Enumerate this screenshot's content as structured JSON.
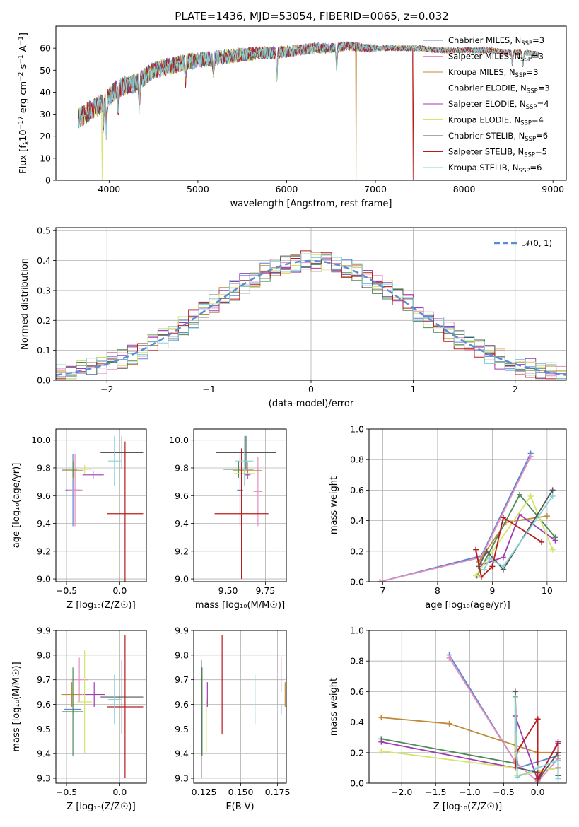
{
  "title": "PLATE=1436, MJD=53054, FIBERID=0065, z=0.032",
  "series_colors": [
    "#5b84d4",
    "#e38fc0",
    "#c08a3a",
    "#4e8a55",
    "#a03bb5",
    "#d7e36a",
    "#555555",
    "#b81c1c",
    "#86d2d8"
  ],
  "series_names": [
    "Chabrier MILES, N",
    "Salpeter MILES, N",
    "Kroupa MILES, N",
    "Chabrier ELODIE, N",
    "Salpeter ELODIE, N",
    "Kroupa ELODIE, N",
    "Chabrier STELIB, N",
    "Salpeter STELIB, N",
    "Kroupa STELIB, N"
  ],
  "series_nssp_sub": "SSP",
  "series_nssp": [
    "=3",
    "=3",
    "=3",
    "=3",
    "=4",
    "=4",
    "=6",
    "=5",
    "=6"
  ],
  "chart_data": [
    {
      "type": "line",
      "id": "spectrum",
      "xlabel": "wavelength [Angstrom, rest frame]",
      "ylabel": "Flux [f",
      "ylabel_parts": [
        "Flux [f",
        "λ",
        "10",
        "−17",
        " erg cm",
        "−2",
        " s",
        "−1",
        " A",
        "−1",
        "]"
      ],
      "xlim": [
        3400,
        9150
      ],
      "ylim": [
        0,
        70
      ],
      "xticks": [
        4000,
        5000,
        6000,
        7000,
        8000,
        9000
      ],
      "yticks": [
        0,
        10,
        20,
        30,
        40,
        50,
        60
      ],
      "grid": false,
      "legend_position": "upper-right",
      "continuum": [
        [
          3650,
          28
        ],
        [
          3800,
          32
        ],
        [
          3950,
          36
        ],
        [
          4100,
          42
        ],
        [
          4300,
          44
        ],
        [
          4500,
          50
        ],
        [
          4700,
          52
        ],
        [
          4900,
          54
        ],
        [
          5100,
          55
        ],
        [
          5300,
          56
        ],
        [
          5500,
          57
        ],
        [
          5700,
          58
        ],
        [
          5900,
          58
        ],
        [
          6100,
          59
        ],
        [
          6300,
          60
        ],
        [
          6500,
          60
        ],
        [
          6700,
          61
        ],
        [
          6900,
          60
        ],
        [
          7100,
          60
        ],
        [
          7300,
          60
        ],
        [
          7500,
          60
        ],
        [
          7700,
          59
        ],
        [
          7900,
          59
        ],
        [
          8100,
          59
        ],
        [
          8300,
          59
        ],
        [
          8500,
          58
        ],
        [
          8700,
          58
        ],
        [
          8850,
          57
        ]
      ],
      "dips": [
        [
          3934,
          12
        ],
        [
          3969,
          14
        ],
        [
          4102,
          10
        ],
        [
          4340,
          12
        ],
        [
          4861,
          8
        ],
        [
          5175,
          6
        ],
        [
          5890,
          12
        ],
        [
          6563,
          10
        ],
        [
          8542,
          6
        ],
        [
          8662,
          6
        ]
      ],
      "drop_outs": [
        {
          "x": 3920,
          "series": 5,
          "to": 0
        },
        {
          "x": 6780,
          "series": 2,
          "to": 0
        },
        {
          "x": 7425,
          "series": 7,
          "to": 0
        }
      ]
    },
    {
      "type": "histogram",
      "id": "residuals",
      "xlabel": "(data-model)/error",
      "ylabel": "Normed distribution",
      "xlim": [
        -2.5,
        2.5
      ],
      "ylim": [
        0,
        0.51
      ],
      "xticks": [
        -2,
        -1,
        0,
        1,
        2
      ],
      "yticks": [
        0.0,
        0.1,
        0.2,
        0.3,
        0.4,
        0.5
      ],
      "grid": true,
      "legend_position": "upper-right",
      "legend_label": "𝒩(0, 1)",
      "bin_width": 0.1,
      "gaussian": {
        "mean": 0,
        "sigma": 1
      }
    },
    {
      "type": "scatter",
      "id": "age-vs-Z",
      "xlabel": "Z [log₁₀(Z/Z☉)]",
      "ylabel": "age  [log₁₀(age/yr)]",
      "xlim": [
        -0.6,
        0.25
      ],
      "ylim": [
        8.98,
        10.08
      ],
      "xticks": [
        -0.5,
        0.0
      ],
      "xticklabels": [
        "−0.5",
        "0.0"
      ],
      "yticks": [
        9.0,
        9.2,
        9.4,
        9.6,
        9.8,
        10.0
      ],
      "yticklabels": [
        "9.0",
        "9.2",
        "9.4",
        "9.6",
        "9.8",
        "10.0"
      ],
      "grid": true,
      "points": [
        {
          "s": 0,
          "x": -0.44,
          "y": 9.64,
          "ex": 0.07,
          "ey": 0.26
        },
        {
          "s": 1,
          "x": -0.42,
          "y": 9.64,
          "ex": 0.07,
          "ey": 0.26
        },
        {
          "s": 2,
          "x": -0.44,
          "y": 9.78,
          "ex": 0.1,
          "ey": 0.06
        },
        {
          "s": 3,
          "x": -0.44,
          "y": 9.79,
          "ex": 0.1,
          "ey": 0.06
        },
        {
          "s": 4,
          "x": -0.25,
          "y": 9.75,
          "ex": 0.1,
          "ey": 0.03
        },
        {
          "s": 5,
          "x": -0.33,
          "y": 9.79,
          "ex": 0.07,
          "ey": 0.03
        },
        {
          "s": 6,
          "x": 0.02,
          "y": 9.91,
          "ex": 0.2,
          "ey": 0.12
        },
        {
          "s": 7,
          "x": 0.05,
          "y": 9.47,
          "ex": 0.17,
          "ey": 0.52
        },
        {
          "s": 8,
          "x": -0.05,
          "y": 9.85,
          "ex": 0.06,
          "ey": 0.18
        }
      ]
    },
    {
      "type": "scatter",
      "id": "age-vs-mass",
      "xlabel": "mass [log₁₀(M/M☉)]",
      "ylabel": "",
      "xlim": [
        9.27,
        9.89
      ],
      "ylim": [
        8.98,
        10.08
      ],
      "xticks": [
        9.5,
        9.75
      ],
      "xticklabels": [
        "9.50",
        "9.75"
      ],
      "yticks": [
        9.0,
        9.2,
        9.4,
        9.6,
        9.8,
        10.0
      ],
      "yticklabels": [
        "9.0",
        "9.2",
        "9.4",
        "9.6",
        "9.8",
        "10.0"
      ],
      "grid": true,
      "points": [
        {
          "s": 0,
          "x": 9.58,
          "y": 9.64,
          "ex": 0.02,
          "ey": 0.26
        },
        {
          "s": 1,
          "x": 9.7,
          "y": 9.63,
          "ex": 0.03,
          "ey": 0.25
        },
        {
          "s": 2,
          "x": 9.63,
          "y": 9.78,
          "ex": 0.1,
          "ey": 0.06
        },
        {
          "s": 3,
          "x": 9.57,
          "y": 9.79,
          "ex": 0.1,
          "ey": 0.06
        },
        {
          "s": 4,
          "x": 9.63,
          "y": 9.75,
          "ex": 0.02,
          "ey": 0.03
        },
        {
          "s": 5,
          "x": 9.61,
          "y": 9.76,
          "ex": 0.07,
          "ey": 0.03
        },
        {
          "s": 6,
          "x": 9.62,
          "y": 9.91,
          "ex": 0.2,
          "ey": 0.12
        },
        {
          "s": 7,
          "x": 9.59,
          "y": 9.47,
          "ex": 0.18,
          "ey": 0.47
        },
        {
          "s": 8,
          "x": 9.61,
          "y": 9.85,
          "ex": 0.06,
          "ey": 0.18
        }
      ]
    },
    {
      "type": "line",
      "id": "sfh-age",
      "xlabel": "age  [log₁₀(age/yr)]",
      "ylabel": "mass weight",
      "xlim": [
        6.75,
        10.35
      ],
      "ylim": [
        0,
        1.0
      ],
      "xticks": [
        7,
        8,
        9,
        10
      ],
      "yticks": [
        0.0,
        0.2,
        0.4,
        0.6,
        0.8,
        1.0
      ],
      "grid": true,
      "series": [
        {
          "s": 0,
          "points": [
            [
              6.95,
              0.0
            ],
            [
              8.8,
              0.17
            ],
            [
              9.7,
              0.84
            ]
          ]
        },
        {
          "s": 1,
          "points": [
            [
              6.95,
              0.0
            ],
            [
              8.8,
              0.16
            ],
            [
              9.7,
              0.82
            ]
          ]
        },
        {
          "s": 2,
          "points": [
            [
              8.75,
              0.13
            ],
            [
              9.25,
              0.39
            ],
            [
              10.0,
              0.43
            ]
          ]
        },
        {
          "s": 3,
          "points": [
            [
              8.72,
              0.04
            ],
            [
              9.5,
              0.57
            ],
            [
              10.15,
              0.29
            ]
          ]
        },
        {
          "s": 4,
          "points": [
            [
              8.8,
              0.11
            ],
            [
              9.2,
              0.16
            ],
            [
              9.5,
              0.44
            ],
            [
              10.15,
              0.27
            ]
          ]
        },
        {
          "s": 5,
          "points": [
            [
              8.7,
              0.04
            ],
            [
              9.7,
              0.56
            ],
            [
              10.1,
              0.21
            ]
          ]
        },
        {
          "s": 6,
          "points": [
            [
              8.75,
              0.1
            ],
            [
              8.9,
              0.2
            ],
            [
              9.2,
              0.08
            ],
            [
              10.1,
              0.6
            ]
          ]
        },
        {
          "s": 7,
          "points": [
            [
              8.7,
              0.21
            ],
            [
              8.8,
              0.03
            ],
            [
              9.0,
              0.1
            ],
            [
              9.2,
              0.42
            ],
            [
              9.9,
              0.26
            ]
          ]
        },
        {
          "s": 8,
          "points": [
            [
              8.85,
              0.08
            ],
            [
              8.95,
              0.15
            ],
            [
              9.2,
              0.1
            ],
            [
              10.1,
              0.56
            ]
          ]
        }
      ]
    },
    {
      "type": "scatter",
      "id": "mass-vs-Z",
      "xlabel": "Z [log₁₀(Z/Z☉)]",
      "ylabel": "mass [log₁₀(M/M☉)]",
      "xlim": [
        -0.6,
        0.25
      ],
      "ylim": [
        9.28,
        9.9
      ],
      "xticks": [
        -0.5,
        0.0
      ],
      "xticklabels": [
        "−0.5",
        "0.0"
      ],
      "yticks": [
        9.3,
        9.4,
        9.5,
        9.6,
        9.7,
        9.8,
        9.9
      ],
      "yticklabels": [
        "9.3",
        "9.4",
        "9.5",
        "9.6",
        "9.7",
        "9.8",
        "9.9"
      ],
      "grid": true,
      "points": [
        {
          "s": 0,
          "x": -0.44,
          "y": 9.58,
          "ex": 0.08,
          "ey": 0.02
        },
        {
          "s": 1,
          "x": -0.38,
          "y": 9.7,
          "ex": 0.08,
          "ey": 0.09
        },
        {
          "s": 2,
          "x": -0.45,
          "y": 9.64,
          "ex": 0.1,
          "ey": 0.05
        },
        {
          "s": 3,
          "x": -0.44,
          "y": 9.57,
          "ex": 0.1,
          "ey": 0.18
        },
        {
          "s": 4,
          "x": -0.24,
          "y": 9.64,
          "ex": 0.1,
          "ey": 0.05
        },
        {
          "s": 5,
          "x": -0.33,
          "y": 9.61,
          "ex": 0.07,
          "ey": 0.21
        },
        {
          "s": 6,
          "x": 0.02,
          "y": 9.63,
          "ex": 0.2,
          "ey": 0.15
        },
        {
          "s": 7,
          "x": 0.05,
          "y": 9.59,
          "ex": 0.17,
          "ey": 0.29
        },
        {
          "s": 8,
          "x": -0.05,
          "y": 9.62,
          "ex": 0.06,
          "ey": 0.1
        }
      ]
    },
    {
      "type": "scatter",
      "id": "mass-vs-ebv",
      "xlabel": "E(B-V)",
      "ylabel": "",
      "xlim": [
        0.118,
        0.181
      ],
      "ylim": [
        9.28,
        9.9
      ],
      "xticks": [
        0.125,
        0.15,
        0.175
      ],
      "xticklabels": [
        "0.125",
        "0.150",
        "0.175"
      ],
      "yticks": [
        9.3,
        9.4,
        9.5,
        9.6,
        9.7,
        9.8,
        9.9
      ],
      "yticklabels": [
        "9.3",
        "9.4",
        "9.5",
        "9.6",
        "9.7",
        "9.8",
        "9.9"
      ],
      "grid": true,
      "points": [
        {
          "s": 0,
          "x": 0.1775,
          "y": 9.58,
          "ex": 0,
          "ey": 0.02
        },
        {
          "s": 1,
          "x": 0.1775,
          "y": 9.72,
          "ex": 0,
          "ey": 0.07
        },
        {
          "s": 2,
          "x": 0.1802,
          "y": 9.64,
          "ex": 0,
          "ey": 0.05
        },
        {
          "s": 3,
          "x": 0.1237,
          "y": 9.57,
          "ex": 0,
          "ey": 0.18
        },
        {
          "s": 4,
          "x": 0.1273,
          "y": 9.64,
          "ex": 0,
          "ey": 0.05
        },
        {
          "s": 5,
          "x": 0.1266,
          "y": 9.51,
          "ex": 0,
          "ey": 0.11
        },
        {
          "s": 6,
          "x": 0.1232,
          "y": 9.54,
          "ex": 0,
          "ey": 0.24
        },
        {
          "s": 7,
          "x": 0.1373,
          "y": 9.68,
          "ex": 0,
          "ey": 0.2
        },
        {
          "s": 8,
          "x": 0.1597,
          "y": 9.62,
          "ex": 0,
          "ey": 0.1
        }
      ]
    },
    {
      "type": "line",
      "id": "sfh-Z",
      "xlabel": "Z [log₁₀(Z/Z☉)]",
      "ylabel": "mass weight",
      "xlim": [
        -2.48,
        0.42
      ],
      "ylim": [
        0,
        1.0
      ],
      "xticks": [
        -2.0,
        -1.5,
        -1.0,
        -0.5,
        0.0
      ],
      "xticklabels": [
        "−2.0",
        "−1.5",
        "−1.0",
        "−0.5",
        "0.0"
      ],
      "yticks": [
        0.0,
        0.2,
        0.4,
        0.6,
        0.8,
        1.0
      ],
      "grid": true,
      "series": [
        {
          "s": 0,
          "points": [
            [
              -1.3,
              0.84
            ],
            [
              -0.33,
              0.14
            ],
            [
              -0.3,
              0.1
            ],
            [
              0.3,
              0.18
            ]
          ]
        },
        {
          "s": 1,
          "points": [
            [
              -1.3,
              0.82
            ],
            [
              -0.33,
              0.14
            ],
            [
              0.0,
              0.01
            ],
            [
              0.3,
              0.16
            ]
          ]
        },
        {
          "s": 2,
          "points": [
            [
              -2.3,
              0.43
            ],
            [
              -1.3,
              0.39
            ],
            [
              0.0,
              0.2
            ],
            [
              0.3,
              0.2
            ]
          ]
        },
        {
          "s": 3,
          "points": [
            [
              -2.3,
              0.29
            ],
            [
              -0.33,
              0.13
            ],
            [
              -0.33,
              0.57
            ],
            [
              -0.3,
              0.05
            ],
            [
              0.3,
              0.1
            ]
          ]
        },
        {
          "s": 4,
          "points": [
            [
              -2.3,
              0.27
            ],
            [
              -0.33,
              0.1
            ],
            [
              -0.33,
              0.44
            ],
            [
              0.0,
              0.02
            ],
            [
              0.3,
              0.27
            ]
          ]
        },
        {
          "s": 5,
          "points": [
            [
              -2.3,
              0.21
            ],
            [
              -0.33,
              0.1
            ],
            [
              -0.33,
              0.56
            ],
            [
              -0.3,
              0.05
            ],
            [
              0.3,
              0.1
            ]
          ]
        },
        {
          "s": 6,
          "points": [
            [
              -0.33,
              0.6
            ],
            [
              -0.3,
              0.1
            ],
            [
              0.0,
              0.07
            ],
            [
              0.0,
              0.02
            ],
            [
              0.3,
              0.2
            ],
            [
              0.3,
              0.05
            ]
          ]
        },
        {
          "s": 7,
          "points": [
            [
              -0.33,
              0.1
            ],
            [
              -0.3,
              0.21
            ],
            [
              0.0,
              0.42
            ],
            [
              0.0,
              0.03
            ],
            [
              0.3,
              0.26
            ],
            [
              0.3,
              0.1
            ]
          ]
        },
        {
          "s": 8,
          "points": [
            [
              -0.33,
              0.56
            ],
            [
              -0.3,
              0.04
            ],
            [
              0.0,
              0.1
            ],
            [
              0.3,
              0.15
            ],
            [
              0.3,
              0.03
            ]
          ]
        }
      ]
    }
  ]
}
